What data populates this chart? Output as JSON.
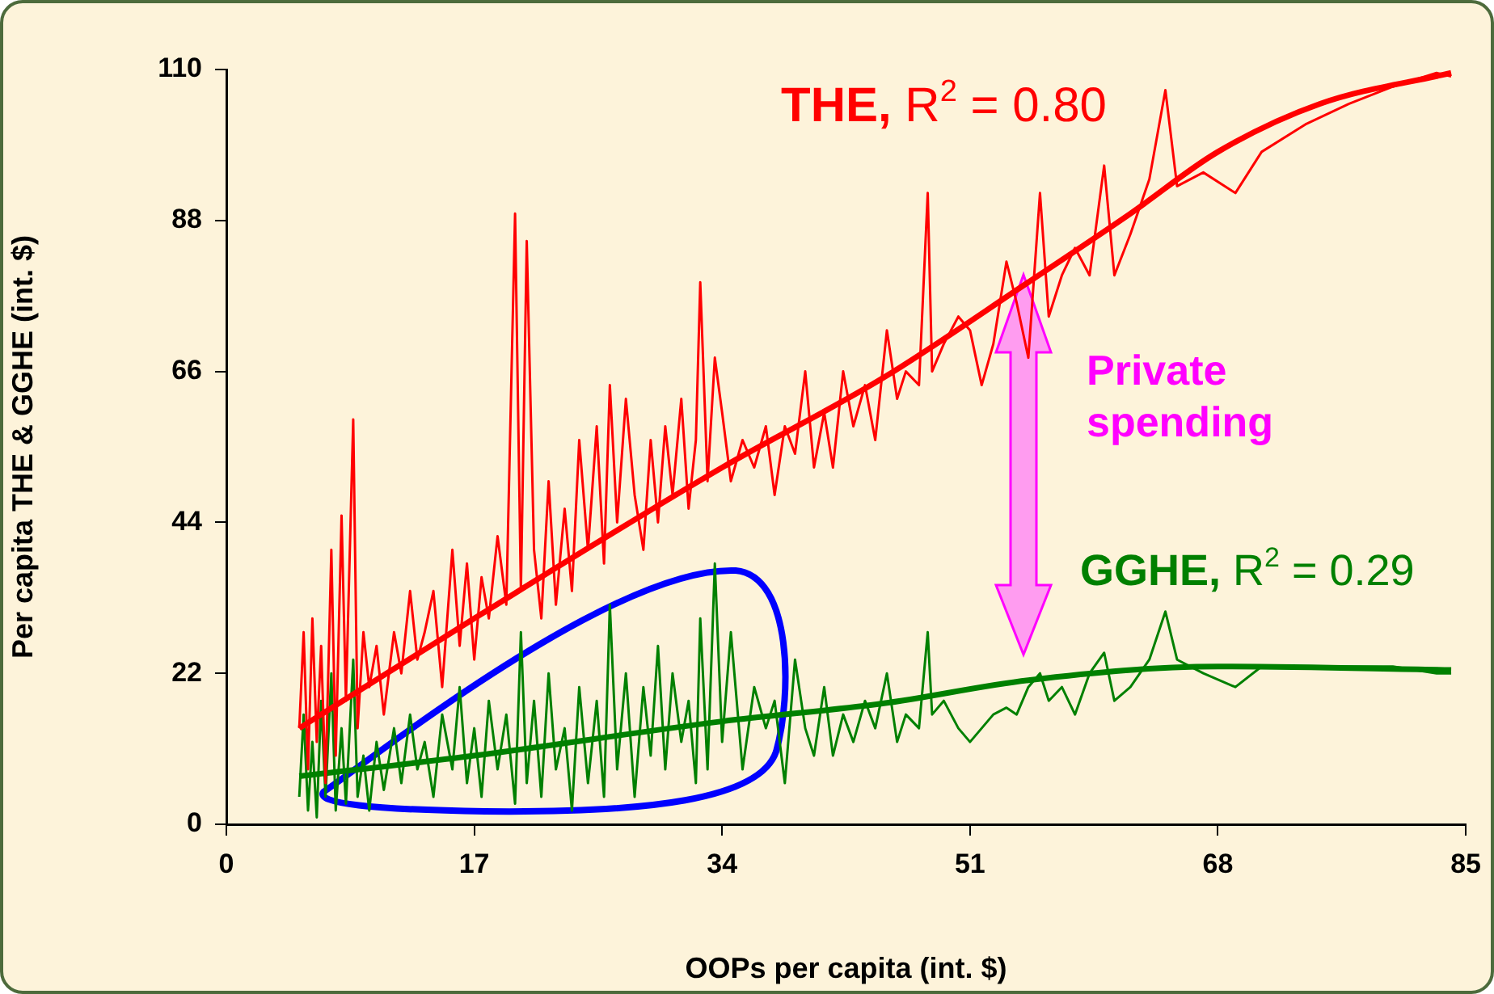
{
  "chart_data": {
    "type": "line",
    "xlabel": "OOPs per capita (int. $)",
    "ylabel": "Per capita THE & GGHE (int. $)",
    "xlim": [
      0,
      85
    ],
    "xticks": [
      0,
      17,
      34,
      51,
      68,
      85
    ],
    "ylim": [
      0,
      110
    ],
    "yticks": [
      0,
      22,
      44,
      66,
      88,
      110
    ],
    "grid": false,
    "legend": false,
    "marker": "none",
    "series": [
      {
        "color": "#ff0000",
        "x": [
          5,
          5.3,
          5.6,
          5.9,
          6.2,
          6.5,
          6.8,
          7.2,
          7.5,
          7.9,
          8.2,
          8.7,
          9.0,
          9.4,
          9.8,
          10.3,
          10.8,
          11.5,
          12,
          12.6,
          13.1,
          13.6,
          14.2,
          14.8,
          15.5,
          16,
          16.5,
          17,
          17.5,
          18,
          18.6,
          19.2,
          19.8,
          20.2,
          20.6,
          21.1,
          21.6,
          22.1,
          22.6,
          23.2,
          23.7,
          24.2,
          24.8,
          25.4,
          25.9,
          26.3,
          26.8,
          27.4,
          28,
          28.6,
          29.1,
          29.6,
          30.1,
          30.6,
          31.2,
          31.7,
          32.2,
          32.5,
          33,
          33.5,
          34,
          34.6,
          35.4,
          36.2,
          37,
          37.6,
          38.3,
          39,
          39.7,
          40.3,
          41,
          41.6,
          42.3,
          43,
          43.8,
          44.5,
          45.3,
          46,
          46.6,
          47.5,
          48.1,
          48.4,
          49.2,
          50.2,
          51,
          51.8,
          52.6,
          53.5,
          54.2,
          55,
          55.8,
          56.4,
          57.3,
          58.2,
          59.2,
          60.2,
          60.9,
          62,
          63.3,
          64.4,
          65.2,
          67,
          69.2,
          71,
          74,
          77,
          80,
          83,
          84
        ],
        "values": [
          14,
          28,
          8,
          30,
          12,
          26,
          6,
          40,
          10,
          45,
          18,
          59,
          14,
          28,
          20,
          26,
          16,
          28,
          22,
          34,
          24,
          28,
          34,
          20,
          40,
          26,
          38,
          24,
          36,
          30,
          42,
          32,
          89,
          34,
          85,
          40,
          30,
          50,
          32,
          46,
          34,
          56,
          40,
          58,
          38,
          64,
          44,
          62,
          48,
          40,
          56,
          44,
          58,
          48,
          62,
          46,
          56,
          79,
          50,
          68,
          60,
          50,
          56,
          52,
          58,
          48,
          58,
          54,
          66,
          52,
          60,
          52,
          66,
          58,
          64,
          56,
          72,
          62,
          66,
          64,
          92,
          66,
          70,
          74,
          72,
          64,
          70,
          82,
          76,
          68,
          92,
          74,
          80,
          84,
          80,
          96,
          80,
          86,
          94,
          107,
          93,
          95,
          92,
          98,
          102,
          105,
          107.5,
          109.5,
          109
        ]
      },
      {
        "color": "#ff0000",
        "x": [
          5,
          17,
          34,
          45,
          55,
          62,
          68,
          75,
          84
        ],
        "values": [
          14,
          30,
          52,
          65,
          79,
          89,
          98,
          105,
          109.5
        ]
      },
      {
        "color": "#008000",
        "x": [
          5,
          5.3,
          5.6,
          5.9,
          6.2,
          6.5,
          6.8,
          7.2,
          7.5,
          7.9,
          8.2,
          8.7,
          9.0,
          9.4,
          9.8,
          10.3,
          10.8,
          11.5,
          12,
          12.6,
          13.1,
          13.6,
          14.2,
          14.8,
          15.5,
          16,
          16.5,
          17,
          17.5,
          18,
          18.6,
          19.2,
          19.8,
          20.2,
          20.6,
          21.1,
          21.6,
          22.1,
          22.6,
          23.2,
          23.7,
          24.2,
          24.8,
          25.4,
          25.9,
          26.3,
          26.8,
          27.4,
          28,
          28.6,
          29.1,
          29.6,
          30.1,
          30.6,
          31.2,
          31.7,
          32.2,
          32.5,
          33,
          33.5,
          34,
          34.6,
          35.4,
          36.2,
          37,
          37.6,
          38.3,
          39,
          39.7,
          40.3,
          41,
          41.6,
          42.3,
          43,
          43.8,
          44.5,
          45.3,
          46,
          46.6,
          47.5,
          48.1,
          48.4,
          49.2,
          50.2,
          51,
          51.8,
          52.6,
          53.5,
          54.2,
          55,
          55.8,
          56.4,
          57.3,
          58.2,
          59.2,
          60.2,
          60.9,
          62,
          63.3,
          64.4,
          65.2,
          67,
          69.2,
          71,
          74,
          77,
          80,
          83,
          84
        ],
        "values": [
          4,
          16,
          2,
          12,
          1,
          18,
          4,
          22,
          2,
          14,
          3,
          24,
          4,
          10,
          2,
          12,
          5,
          14,
          6,
          16,
          8,
          12,
          4,
          16,
          8,
          20,
          6,
          14,
          4,
          18,
          8,
          16,
          3,
          28,
          6,
          18,
          4,
          22,
          8,
          14,
          2,
          20,
          6,
          18,
          4,
          32,
          8,
          22,
          4,
          20,
          10,
          26,
          8,
          22,
          12,
          18,
          6,
          30,
          8,
          38,
          12,
          28,
          8,
          20,
          14,
          18,
          6,
          24,
          14,
          10,
          20,
          10,
          16,
          12,
          18,
          14,
          22,
          12,
          16,
          14,
          28,
          16,
          18,
          14,
          12,
          14,
          16,
          17,
          16,
          20,
          22,
          18,
          20,
          16,
          22,
          25,
          18,
          20,
          24,
          31,
          24,
          22,
          20,
          23,
          23,
          23,
          23,
          22,
          22
        ]
      },
      {
        "color": "#008000",
        "x": [
          5,
          17,
          34,
          45,
          55,
          68,
          84
        ],
        "values": [
          7,
          10,
          15,
          17.6,
          21,
          23,
          22.5
        ]
      }
    ],
    "annotations": [
      "THE, R$^{2}$ = 0.80",
      "GGHE, R$^{2}$ = 0.29",
      "Private spending"
    ]
  }
}
